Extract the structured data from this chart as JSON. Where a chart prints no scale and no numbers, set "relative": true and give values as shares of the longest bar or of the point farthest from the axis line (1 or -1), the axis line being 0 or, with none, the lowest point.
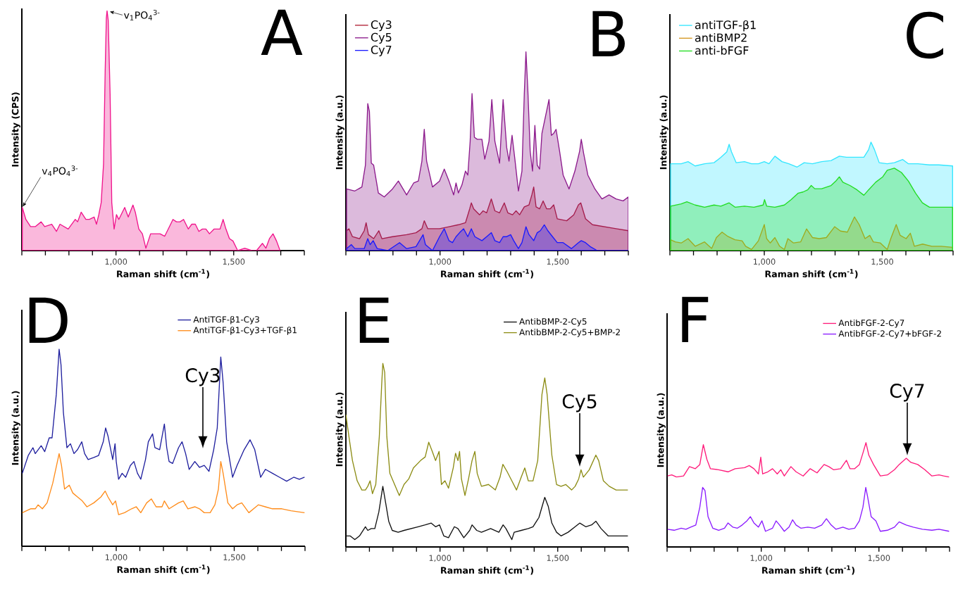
{
  "chart_data": [
    {
      "type": "area",
      "title": "A",
      "xlabel": "Raman shift (cm$^{-1}$)",
      "ylabel": "Intensity (CPS)",
      "relative": true,
      "xlim": [
        600,
        1800
      ],
      "xticks": [
        {
          "value": 600,
          "label": null
        },
        {
          "value": 700,
          "label": null
        },
        {
          "value": 800,
          "label": null
        },
        {
          "value": 900,
          "label": null
        },
        {
          "value": 1000,
          "label": "1,000"
        },
        {
          "value": 1100,
          "label": null
        },
        {
          "value": 1200,
          "label": null
        },
        {
          "value": 1300,
          "label": null
        },
        {
          "value": 1400,
          "label": null
        },
        {
          "value": 1500,
          "label": "1,500"
        },
        {
          "value": 1600,
          "label": null
        },
        {
          "value": 1700,
          "label": null
        },
        {
          "value": 1800,
          "label": null
        }
      ],
      "series": [
        {
          "color": "#f0148c",
          "x": [
            602,
            617,
            637,
            657,
            682,
            697,
            727,
            747,
            762,
            797,
            827,
            837,
            852,
            872,
            887,
            907,
            917,
            927,
            937,
            947,
            954,
            959,
            962,
            967,
            975,
            982,
            992,
            1002,
            1012,
            1027,
            1037,
            1052,
            1072,
            1082,
            1097,
            1112,
            1127,
            1147,
            1167,
            1187,
            1207,
            1227,
            1242,
            1257,
            1272,
            1287,
            1307,
            1322,
            1337,
            1352,
            1367,
            1382,
            1397,
            1417,
            1442,
            1455,
            1467,
            1482,
            1497,
            1517,
            1547,
            1577,
            1597,
            1622,
            1637,
            1652,
            1667,
            1682,
            1697
          ],
          "values": [
            0.18,
            0.13,
            0.1,
            0.1,
            0.12,
            0.1,
            0.11,
            0.08,
            0.11,
            0.09,
            0.13,
            0.12,
            0.16,
            0.13,
            0.13,
            0.14,
            0.11,
            0.15,
            0.2,
            0.36,
            0.75,
            0.97,
            1.0,
            0.96,
            0.65,
            0.2,
            0.09,
            0.15,
            0.13,
            0.16,
            0.18,
            0.14,
            0.19,
            0.16,
            0.09,
            0.07,
            0.01,
            0.07,
            0.07,
            0.07,
            0.06,
            0.1,
            0.13,
            0.12,
            0.12,
            0.13,
            0.09,
            0.11,
            0.11,
            0.08,
            0.09,
            0.09,
            0.07,
            0.09,
            0.09,
            0.13,
            0.09,
            0.05,
            0.04,
            0,
            0.01,
            0,
            0,
            0.03,
            0.01,
            0.05,
            0.07,
            0.04,
            0
          ]
        }
      ],
      "annotations": [
        {
          "text": "v$_{1}$PO$_{4}$$^{3-}$",
          "x": 962,
          "y": 1.0
        },
        {
          "text": "v$_{4}$PO$_{4}$$^{3-}$",
          "x": 602,
          "y": 0.18
        }
      ]
    },
    {
      "type": "area",
      "title": "B",
      "xlabel": "Raman shift (cm$^{-1}$)",
      "ylabel": "Intensity (a.u.)",
      "relative": true,
      "legend": "top left",
      "xlim": [
        600,
        1800
      ],
      "xticks": [
        {
          "value": 600,
          "label": null
        },
        {
          "value": 700,
          "label": null
        },
        {
          "value": 800,
          "label": null
        },
        {
          "value": 900,
          "label": null
        },
        {
          "value": 1000,
          "label": "1,000"
        },
        {
          "value": 1100,
          "label": null
        },
        {
          "value": 1200,
          "label": null
        },
        {
          "value": 1300,
          "label": null
        },
        {
          "value": 1400,
          "label": null
        },
        {
          "value": 1500,
          "label": "1,500"
        },
        {
          "value": 1600,
          "label": null
        },
        {
          "value": 1700,
          "label": null
        },
        {
          "value": 1800,
          "label": null
        }
      ],
      "series": [
        {
          "name": "Cy3",
          "color": "#b01e32",
          "x": [
            603,
            613,
            628,
            658,
            678,
            686,
            696,
            718,
            740,
            753,
            798,
            858,
            898,
            923,
            933,
            948,
            998,
            1038,
            1078,
            1108,
            1126,
            1133,
            1143,
            1168,
            1183,
            1198,
            1218,
            1233,
            1253,
            1273,
            1288,
            1308,
            1323,
            1338,
            1358,
            1378,
            1390,
            1398,
            1408,
            1423,
            1438,
            1453,
            1468,
            1483,
            1498,
            1538,
            1568,
            1588,
            1598,
            1618,
            1648,
            1698,
            1748,
            1800
          ],
          "values": [
            0.1,
            0.11,
            0.07,
            0.06,
            0.1,
            0.14,
            0.08,
            0.06,
            0.1,
            0.06,
            0.07,
            0.08,
            0.09,
            0.11,
            0.15,
            0.11,
            0.11,
            0.12,
            0.13,
            0.14,
            0.21,
            0.24,
            0.21,
            0.18,
            0.2,
            0.19,
            0.26,
            0.2,
            0.19,
            0.24,
            0.19,
            0.18,
            0.2,
            0.18,
            0.22,
            0.23,
            0.28,
            0.32,
            0.22,
            0.21,
            0.25,
            0.21,
            0.21,
            0.23,
            0.16,
            0.15,
            0.18,
            0.23,
            0.24,
            0.16,
            0.13,
            0.12,
            0.11,
            0.1
          ]
        },
        {
          "name": "Cy5",
          "color": "#8c1a8c",
          "x": [
            603,
            638,
            668,
            683,
            693,
            700,
            708,
            718,
            738,
            763,
            798,
            823,
            858,
            888,
            908,
            923,
            933,
            943,
            968,
            998,
            1018,
            1038,
            1058,
            1068,
            1078,
            1093,
            1108,
            1118,
            1128,
            1136,
            1146,
            1158,
            1178,
            1190,
            1208,
            1220,
            1233,
            1253,
            1268,
            1283,
            1293,
            1306,
            1318,
            1333,
            1348,
            1358,
            1365,
            1373,
            1383,
            1393,
            1403,
            1413,
            1423,
            1433,
            1463,
            1473,
            1483,
            1493,
            1508,
            1523,
            1548,
            1573,
            1593,
            1600,
            1610,
            1628,
            1658,
            1688,
            1718,
            1748,
            1778,
            1800
          ],
          "values": [
            0.31,
            0.3,
            0.32,
            0.43,
            0.74,
            0.7,
            0.44,
            0.43,
            0.29,
            0.27,
            0.31,
            0.35,
            0.28,
            0.34,
            0.35,
            0.45,
            0.61,
            0.45,
            0.32,
            0.35,
            0.41,
            0.35,
            0.28,
            0.34,
            0.29,
            0.33,
            0.4,
            0.38,
            0.55,
            0.79,
            0.57,
            0.56,
            0.56,
            0.46,
            0.55,
            0.76,
            0.55,
            0.44,
            0.76,
            0.52,
            0.45,
            0.58,
            0.46,
            0.3,
            0.4,
            0.79,
            1.0,
            0.81,
            0.5,
            0.4,
            0.63,
            0.43,
            0.41,
            0.59,
            0.76,
            0.58,
            0.59,
            0.61,
            0.5,
            0.38,
            0.31,
            0.4,
            0.5,
            0.56,
            0.49,
            0.38,
            0.31,
            0.26,
            0.28,
            0.26,
            0.25,
            0.27
          ]
        },
        {
          "name": "Cy7",
          "color": "#1a1aff",
          "x": [
            603,
            623,
            638,
            678,
            693,
            703,
            716,
            733,
            778,
            828,
            858,
            898,
            928,
            938,
            968,
            998,
            1018,
            1038,
            1053,
            1068,
            1083,
            1100,
            1118,
            1133,
            1148,
            1178,
            1198,
            1218,
            1233,
            1253,
            1268,
            1283,
            1300,
            1313,
            1333,
            1348,
            1365,
            1378,
            1398,
            1413,
            1426,
            1443,
            1458,
            1478,
            1498,
            1523,
            1558,
            1588,
            1600,
            1618,
            1638,
            1668,
            1728,
            1800
          ],
          "values": [
            0.01,
            0.03,
            0.01,
            0.01,
            0.06,
            0.03,
            0.05,
            0.01,
            0,
            0.04,
            0.01,
            0.02,
            0.08,
            0.03,
            0,
            0.07,
            0.11,
            0.05,
            0.04,
            0.07,
            0.09,
            0.11,
            0.07,
            0.11,
            0.07,
            0.05,
            0.07,
            0.09,
            0.05,
            0.04,
            0.07,
            0.07,
            0.08,
            0.05,
            0.01,
            0.04,
            0.12,
            0.08,
            0.05,
            0.09,
            0.1,
            0.13,
            0.1,
            0.07,
            0.04,
            0.04,
            0.01,
            0.04,
            0.05,
            0.04,
            0.02,
            0,
            0,
            0
          ]
        }
      ]
    },
    {
      "type": "area",
      "title": "C",
      "xlabel": "Raman shift (cm$^{-1}$)",
      "ylabel": "Intensity (a.u.)",
      "relative": true,
      "legend": "top left",
      "xlim": [
        600,
        1800
      ],
      "xticks": [
        {
          "value": 600,
          "label": null
        },
        {
          "value": 700,
          "label": null
        },
        {
          "value": 800,
          "label": null
        },
        {
          "value": 900,
          "label": null
        },
        {
          "value": 1000,
          "label": "1,000"
        },
        {
          "value": 1100,
          "label": null
        },
        {
          "value": 1200,
          "label": null
        },
        {
          "value": 1300,
          "label": null
        },
        {
          "value": 1400,
          "label": null
        },
        {
          "value": 1500,
          "label": "1,500"
        },
        {
          "value": 1600,
          "label": null
        },
        {
          "value": 1700,
          "label": null
        },
        {
          "value": 1800,
          "label": null
        }
      ],
      "series": [
        {
          "name": "antiTGF-β1",
          "color": "#33e6ff",
          "x": [
            603,
            648,
            677,
            707,
            747,
            787,
            816,
            841,
            851,
            861,
            881,
            916,
            946,
            975,
            1000,
            1020,
            1045,
            1075,
            1104,
            1139,
            1169,
            1204,
            1243,
            1283,
            1318,
            1348,
            1383,
            1422,
            1442,
            1452,
            1467,
            1487,
            1521,
            1551,
            1586,
            1611,
            1651,
            1700,
            1740,
            1798
          ],
          "values": [
            0.8,
            0.8,
            0.82,
            0.78,
            0.8,
            0.81,
            0.86,
            0.91,
            0.98,
            0.91,
            0.81,
            0.82,
            0.8,
            0.8,
            0.82,
            0.8,
            0.87,
            0.82,
            0.8,
            0.77,
            0.81,
            0.8,
            0.82,
            0.83,
            0.87,
            0.86,
            0.86,
            0.86,
            0.93,
            1.0,
            0.93,
            0.81,
            0.8,
            0.81,
            0.84,
            0.8,
            0.8,
            0.79,
            0.79,
            0.78
          ]
        },
        {
          "name": "antiBMP2",
          "color": "#d4961e",
          "x": [
            603,
            623,
            648,
            677,
            707,
            747,
            777,
            797,
            821,
            846,
            876,
            906,
            921,
            946,
            975,
            1000,
            1010,
            1025,
            1045,
            1065,
            1085,
            1100,
            1124,
            1154,
            1179,
            1204,
            1233,
            1263,
            1298,
            1323,
            1352,
            1382,
            1402,
            1427,
            1447,
            1462,
            1492,
            1521,
            1536,
            1559,
            1576,
            1601,
            1619,
            1636,
            1671,
            1710,
            1750,
            1798
          ],
          "values": [
            0.1,
            0.08,
            0.07,
            0.11,
            0.04,
            0.08,
            0.02,
            0.12,
            0.17,
            0.13,
            0.1,
            0.09,
            0.04,
            0.01,
            0.09,
            0.24,
            0.11,
            0.07,
            0.12,
            0.04,
            0.01,
            0.11,
            0.07,
            0.08,
            0.2,
            0.12,
            0.11,
            0.12,
            0.22,
            0.18,
            0.17,
            0.31,
            0.24,
            0.11,
            0.14,
            0.08,
            0.07,
            0.01,
            0.11,
            0.24,
            0.14,
            0.11,
            0.16,
            0.04,
            0.06,
            0.04,
            0.04,
            0.03
          ]
        },
        {
          "name": "anti-bFGF",
          "color": "#22dd22",
          "x": [
            603,
            648,
            672,
            707,
            747,
            787,
            816,
            851,
            876,
            916,
            956,
            995,
            1001,
            1010,
            1045,
            1085,
            1114,
            1144,
            1164,
            1184,
            1199,
            1214,
            1243,
            1283,
            1303,
            1318,
            1333,
            1363,
            1393,
            1422,
            1442,
            1472,
            1502,
            1521,
            1551,
            1581,
            1611,
            1641,
            1670,
            1700,
            1740,
            1798
          ],
          "values": [
            0.41,
            0.43,
            0.45,
            0.42,
            0.4,
            0.42,
            0.41,
            0.44,
            0.4,
            0.41,
            0.4,
            0.42,
            0.47,
            0.41,
            0.4,
            0.42,
            0.47,
            0.53,
            0.54,
            0.56,
            0.6,
            0.57,
            0.57,
            0.6,
            0.64,
            0.68,
            0.63,
            0.6,
            0.56,
            0.51,
            0.56,
            0.63,
            0.68,
            0.74,
            0.76,
            0.72,
            0.64,
            0.53,
            0.44,
            0.4,
            0.4,
            0.4
          ]
        }
      ]
    },
    {
      "type": "line",
      "title": "D",
      "xlabel": "Raman shift (cm$^{-1}$)",
      "ylabel": "Intensity (a.u.)",
      "relative": true,
      "legend": "top right",
      "xlim": [
        600,
        1800
      ],
      "xticks": [
        {
          "value": 600,
          "label": null
        },
        {
          "value": 700,
          "label": null
        },
        {
          "value": 800,
          "label": null
        },
        {
          "value": 900,
          "label": null
        },
        {
          "value": 1000,
          "label": "1,000"
        },
        {
          "value": 1100,
          "label": null
        },
        {
          "value": 1200,
          "label": null
        },
        {
          "value": 1300,
          "label": null
        },
        {
          "value": 1400,
          "label": null
        },
        {
          "value": 1500,
          "label": "1,500"
        },
        {
          "value": 1600,
          "label": null
        },
        {
          "value": 1700,
          "label": null
        },
        {
          "value": 1800,
          "label": null
        }
      ],
      "series": [
        {
          "name": "AntiTGF-β1-Cy3",
          "color": "#1f1f9e",
          "x": [
            602,
            627,
            647,
            657,
            682,
            697,
            716,
            728,
            746,
            758,
            766,
            776,
            791,
            806,
            821,
            836,
            854,
            866,
            881,
            905,
            925,
            945,
            955,
            965,
            985,
            995,
            1000,
            1010,
            1025,
            1040,
            1060,
            1075,
            1090,
            1104,
            1124,
            1136,
            1154,
            1164,
            1184,
            1204,
            1214,
            1224,
            1239,
            1264,
            1279,
            1294,
            1309,
            1333,
            1353,
            1373,
            1393,
            1413,
            1428,
            1443,
            1453,
            1468,
            1493,
            1512,
            1542,
            1567,
            1587,
            1612,
            1632,
            1662,
            1692,
            1722,
            1752,
            1776,
            1798
          ],
          "values": [
            0.37,
            0.46,
            0.5,
            0.47,
            0.51,
            0.48,
            0.55,
            0.55,
            0.77,
            1.0,
            0.92,
            0.68,
            0.5,
            0.52,
            0.47,
            0.49,
            0.53,
            0.47,
            0.44,
            0.45,
            0.46,
            0.53,
            0.6,
            0.56,
            0.44,
            0.52,
            0.43,
            0.34,
            0.37,
            0.35,
            0.41,
            0.43,
            0.37,
            0.34,
            0.44,
            0.53,
            0.57,
            0.5,
            0.49,
            0.62,
            0.5,
            0.43,
            0.42,
            0.5,
            0.53,
            0.47,
            0.39,
            0.43,
            0.4,
            0.41,
            0.38,
            0.49,
            0.6,
            0.96,
            0.83,
            0.53,
            0.35,
            0.41,
            0.49,
            0.54,
            0.49,
            0.35,
            0.39,
            0.37,
            0.35,
            0.33,
            0.35,
            0.34,
            0.35
          ]
        },
        {
          "name": "AntiTGF-β1-Cy3+TGF-β1",
          "color": "#ff8c1a",
          "x": [
            602,
            637,
            657,
            669,
            687,
            707,
            731,
            758,
            768,
            781,
            801,
            816,
            836,
            856,
            876,
            905,
            935,
            953,
            965,
            985,
            997,
            1010,
            1035,
            1065,
            1085,
            1104,
            1129,
            1149,
            1169,
            1194,
            1204,
            1224,
            1264,
            1284,
            1304,
            1333,
            1353,
            1373,
            1398,
            1418,
            1433,
            1443,
            1453,
            1473,
            1493,
            1512,
            1532,
            1562,
            1592,
            1602,
            1632,
            1662,
            1702,
            1741,
            1798
          ],
          "values": [
            0.17,
            0.19,
            0.19,
            0.21,
            0.19,
            0.22,
            0.32,
            0.47,
            0.41,
            0.29,
            0.31,
            0.27,
            0.25,
            0.23,
            0.2,
            0.22,
            0.25,
            0.28,
            0.25,
            0.21,
            0.23,
            0.16,
            0.17,
            0.19,
            0.2,
            0.17,
            0.22,
            0.24,
            0.2,
            0.2,
            0.23,
            0.19,
            0.22,
            0.23,
            0.19,
            0.2,
            0.19,
            0.17,
            0.17,
            0.21,
            0.29,
            0.43,
            0.37,
            0.22,
            0.19,
            0.21,
            0.22,
            0.17,
            0.2,
            0.21,
            0.2,
            0.19,
            0.19,
            0.18,
            0.17
          ]
        }
      ],
      "annotations": [
        "Cy3"
      ]
    },
    {
      "type": "line",
      "title": "E",
      "xlabel": "Raman shift (cm$^{-1}$)",
      "ylabel": "Intensity (a.u.)",
      "relative": true,
      "legend": "top right",
      "xlim": [
        600,
        1800
      ],
      "xticks": [
        {
          "value": 600,
          "label": null
        },
        {
          "value": 700,
          "label": null
        },
        {
          "value": 800,
          "label": null
        },
        {
          "value": 900,
          "label": null
        },
        {
          "value": 1000,
          "label": "1,000"
        },
        {
          "value": 1100,
          "label": null
        },
        {
          "value": 1200,
          "label": null
        },
        {
          "value": 1300,
          "label": null
        },
        {
          "value": 1400,
          "label": null
        },
        {
          "value": 1500,
          "label": "1,500"
        },
        {
          "value": 1600,
          "label": null
        },
        {
          "value": 1700,
          "label": null
        },
        {
          "value": 1800,
          "label": null
        }
      ],
      "series": [
        {
          "name": "AntibBMP-2-Cy5",
          "color": "#111111",
          "x": [
            600,
            618,
            638,
            658,
            683,
            693,
            708,
            723,
            740,
            757,
            769,
            782,
            797,
            822,
            847,
            877,
            907,
            937,
            962,
            981,
            998,
            1016,
            1036,
            1061,
            1076,
            1101,
            1126,
            1136,
            1156,
            1176,
            1215,
            1250,
            1268,
            1280,
            1305,
            1315,
            1345,
            1375,
            1395,
            1420,
            1445,
            1460,
            1475,
            1495,
            1514,
            1544,
            1574,
            1594,
            1619,
            1644,
            1662,
            1684,
            1714,
            1754,
            1798
          ],
          "values": [
            0.06,
            0.06,
            0.04,
            0.06,
            0.11,
            0.09,
            0.1,
            0.1,
            0.19,
            0.33,
            0.24,
            0.14,
            0.09,
            0.08,
            0.09,
            0.1,
            0.11,
            0.12,
            0.13,
            0.11,
            0.12,
            0.06,
            0.05,
            0.11,
            0.1,
            0.05,
            0.09,
            0.12,
            0.09,
            0.08,
            0.1,
            0.08,
            0.12,
            0.1,
            0.04,
            0.08,
            0.09,
            0.1,
            0.11,
            0.16,
            0.27,
            0.22,
            0.13,
            0.08,
            0.06,
            0.08,
            0.11,
            0.13,
            0.11,
            0.12,
            0.14,
            0.1,
            0.06,
            0.06,
            0.06
          ]
        },
        {
          "name": "AntibBMP-2-Cy5+BMP-2",
          "color": "#8c8c14",
          "x": [
            600,
            613,
            628,
            648,
            668,
            683,
            693,
            703,
            713,
            727,
            742,
            752,
            757,
            765,
            774,
            787,
            807,
            827,
            847,
            867,
            887,
            917,
            937,
            952,
            967,
            981,
            996,
            1006,
            1021,
            1036,
            1056,
            1066,
            1076,
            1083,
            1091,
            1106,
            1121,
            1136,
            1148,
            1158,
            1176,
            1206,
            1235,
            1255,
            1267,
            1285,
            1305,
            1325,
            1345,
            1360,
            1375,
            1395,
            1415,
            1433,
            1445,
            1455,
            1475,
            1495,
            1514,
            1534,
            1559,
            1574,
            1589,
            1599,
            1609,
            1634,
            1662,
            1674,
            1694,
            1719,
            1748,
            1773,
            1798
          ],
          "values": [
            0.72,
            0.6,
            0.47,
            0.36,
            0.31,
            0.31,
            0.33,
            0.36,
            0.29,
            0.34,
            0.6,
            0.88,
            1.0,
            0.95,
            0.6,
            0.4,
            0.34,
            0.28,
            0.34,
            0.37,
            0.43,
            0.47,
            0.49,
            0.57,
            0.52,
            0.47,
            0.52,
            0.34,
            0.36,
            0.32,
            0.43,
            0.51,
            0.47,
            0.52,
            0.37,
            0.28,
            0.37,
            0.47,
            0.52,
            0.4,
            0.33,
            0.34,
            0.31,
            0.38,
            0.45,
            0.41,
            0.36,
            0.31,
            0.38,
            0.43,
            0.36,
            0.36,
            0.47,
            0.83,
            0.92,
            0.83,
            0.5,
            0.34,
            0.33,
            0.34,
            0.31,
            0.33,
            0.37,
            0.42,
            0.38,
            0.42,
            0.5,
            0.47,
            0.36,
            0.33,
            0.31,
            0.31,
            0.31
          ]
        }
      ],
      "annotations": [
        "Cy5"
      ]
    },
    {
      "type": "line",
      "title": "F",
      "xlabel": "Raman shift (cm$^{-1}$)",
      "ylabel": "Intensity (a.u.)",
      "relative": true,
      "legend": "top right",
      "xlim": [
        600,
        1800
      ],
      "xticks": [
        {
          "value": 600,
          "label": null
        },
        {
          "value": 700,
          "label": null
        },
        {
          "value": 800,
          "label": null
        },
        {
          "value": 900,
          "label": null
        },
        {
          "value": 1000,
          "label": "1,000"
        },
        {
          "value": 1100,
          "label": null
        },
        {
          "value": 1200,
          "label": null
        },
        {
          "value": 1300,
          "label": null
        },
        {
          "value": 1400,
          "label": null
        },
        {
          "value": 1500,
          "label": "1,500"
        },
        {
          "value": 1600,
          "label": null
        },
        {
          "value": 1700,
          "label": null
        },
        {
          "value": 1800,
          "label": null
        }
      ],
      "series": [
        {
          "name": "AntibFGF-2-Cy7",
          "color": "#ff1a7a",
          "x": [
            602,
            620,
            640,
            670,
            695,
            720,
            739,
            754,
            769,
            784,
            819,
            859,
            889,
            929,
            949,
            969,
            988,
            998,
            1006,
            1028,
            1048,
            1068,
            1083,
            1098,
            1126,
            1148,
            1178,
            1208,
            1237,
            1267,
            1287,
            1307,
            1337,
            1362,
            1377,
            1397,
            1417,
            1432,
            1445,
            1457,
            1477,
            1506,
            1536,
            1566,
            1586,
            1616,
            1636,
            1665,
            1695,
            1725,
            1755,
            1775,
            1798
          ],
          "values": [
            0.68,
            0.69,
            0.67,
            0.68,
            0.77,
            0.75,
            0.79,
            0.98,
            0.84,
            0.75,
            0.74,
            0.72,
            0.75,
            0.76,
            0.78,
            0.75,
            0.7,
            0.86,
            0.7,
            0.72,
            0.75,
            0.7,
            0.74,
            0.68,
            0.77,
            0.72,
            0.68,
            0.75,
            0.71,
            0.79,
            0.77,
            0.74,
            0.75,
            0.83,
            0.75,
            0.75,
            0.79,
            0.9,
            1.0,
            0.88,
            0.79,
            0.68,
            0.69,
            0.74,
            0.79,
            0.85,
            0.81,
            0.79,
            0.74,
            0.68,
            0.69,
            0.68,
            0.67
          ]
        },
        {
          "name": "AntibFGF-2-Cy7+bFGF-2",
          "color": "#8a1aff",
          "x": [
            602,
            630,
            660,
            680,
            700,
            722,
            739,
            751,
            761,
            774,
            794,
            819,
            844,
            859,
            879,
            899,
            919,
            939,
            954,
            969,
            988,
            1003,
            1018,
            1048,
            1063,
            1078,
            1098,
            1118,
            1133,
            1148,
            1168,
            1198,
            1227,
            1257,
            1277,
            1297,
            1317,
            1347,
            1372,
            1397,
            1417,
            1432,
            1444,
            1452,
            1467,
            1487,
            1506,
            1536,
            1566,
            1586,
            1616,
            1646,
            1685,
            1725,
            1755,
            1798
          ],
          "values": [
            0.17,
            0.16,
            0.18,
            0.17,
            0.19,
            0.21,
            0.38,
            0.57,
            0.54,
            0.29,
            0.18,
            0.16,
            0.18,
            0.23,
            0.19,
            0.18,
            0.21,
            0.25,
            0.29,
            0.23,
            0.19,
            0.25,
            0.15,
            0.18,
            0.25,
            0.21,
            0.15,
            0.19,
            0.26,
            0.21,
            0.18,
            0.19,
            0.18,
            0.21,
            0.27,
            0.21,
            0.17,
            0.19,
            0.17,
            0.18,
            0.25,
            0.38,
            0.57,
            0.48,
            0.29,
            0.25,
            0.15,
            0.16,
            0.19,
            0.24,
            0.21,
            0.19,
            0.17,
            0.16,
            0.17,
            0.15
          ]
        }
      ],
      "annotations": [
        "Cy7"
      ]
    }
  ]
}
